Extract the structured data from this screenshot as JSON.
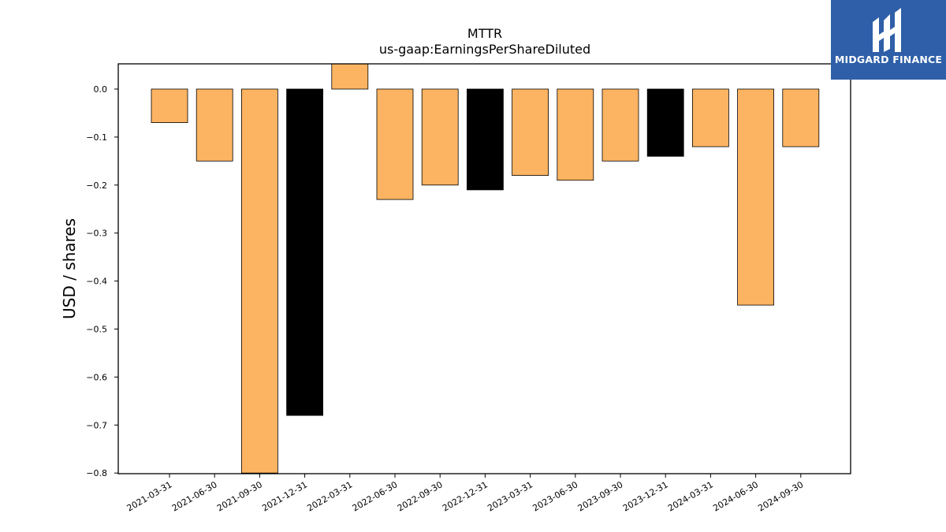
{
  "chart_data": {
    "type": "bar",
    "title": "MTTR",
    "subtitle": "us-gaap:EarningsPerShareDiluted",
    "xlabel": "",
    "ylabel": "USD / shares",
    "ylim": [
      -0.8,
      0.05
    ],
    "yticks": [
      "0.0",
      "−0.1",
      "−0.2",
      "−0.3",
      "−0.4",
      "−0.5",
      "−0.6",
      "−0.7",
      "−0.8"
    ],
    "grid": false,
    "categories": [
      "2021-03-31",
      "2021-06-30",
      "2021-09-30",
      "2021-12-31",
      "2022-03-31",
      "2022-06-30",
      "2022-09-30",
      "2022-12-31",
      "2023-03-31",
      "2023-06-30",
      "2023-09-30",
      "2023-12-31",
      "2024-03-31",
      "2024-06-30",
      "2024-09-30"
    ],
    "values": [
      -0.07,
      -0.15,
      -0.8,
      -0.68,
      0.06,
      -0.23,
      -0.2,
      -0.21,
      -0.18,
      -0.19,
      -0.15,
      -0.14,
      -0.12,
      -0.45,
      -0.12
    ],
    "bar_colors": [
      "#fdb462",
      "#fdb462",
      "#fdb462",
      "#000000",
      "#fdb462",
      "#fdb462",
      "#fdb462",
      "#000000",
      "#fdb462",
      "#fdb462",
      "#fdb462",
      "#000000",
      "#fdb462",
      "#fdb462",
      "#fdb462"
    ]
  },
  "logo": {
    "text": "MIDGARD FINANCE",
    "background": "#2f5fa8"
  }
}
